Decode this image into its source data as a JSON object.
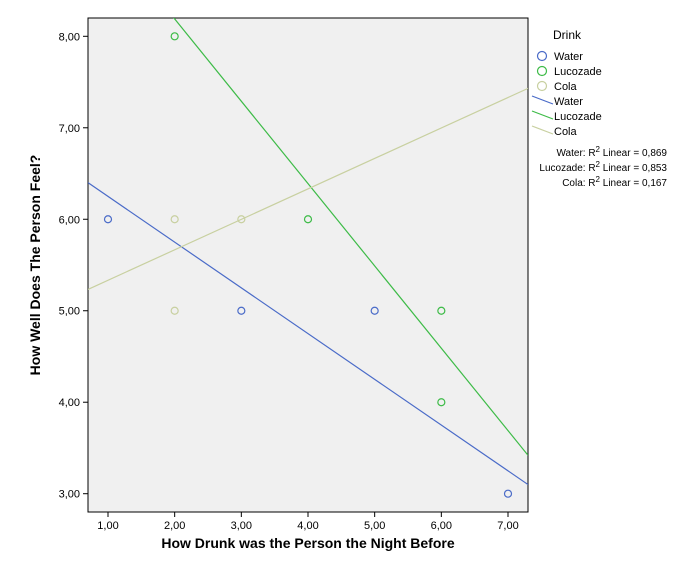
{
  "chart_data": {
    "type": "scatter",
    "title": "",
    "xlabel": "How Drunk was the Person the Night Before",
    "ylabel": "How Well Does The Person Feel?",
    "xlim": [
      0.7,
      7.3
    ],
    "ylim": [
      2.8,
      8.2
    ],
    "x_ticks": [
      1,
      2,
      3,
      4,
      5,
      6,
      7
    ],
    "x_tick_labels": [
      "1,00",
      "2,00",
      "3,00",
      "4,00",
      "5,00",
      "6,00",
      "7,00"
    ],
    "y_ticks": [
      3,
      4,
      5,
      6,
      7,
      8
    ],
    "y_tick_labels": [
      "3,00",
      "4,00",
      "5,00",
      "6,00",
      "7,00",
      "8,00"
    ],
    "grid": false,
    "plot_background": "#f0f0f0",
    "legend_position": "right",
    "legend_title": "Drink",
    "series": [
      {
        "name": "Water",
        "color": "#4a6bc8",
        "points": [
          [
            1,
            6
          ],
          [
            3,
            5
          ],
          [
            5,
            5
          ],
          [
            7,
            3
          ]
        ],
        "fit_line": {
          "label": "Water",
          "slope": -0.5,
          "intercept": 6.75
        },
        "r2_label": "Water: R",
        "r2_value": "Linear = 0,869"
      },
      {
        "name": "Lucozade",
        "color": "#3dbb47",
        "points": [
          [
            2,
            8
          ],
          [
            4,
            6
          ],
          [
            6,
            5
          ],
          [
            6,
            4
          ]
        ],
        "fit_line": {
          "label": "Lucozade",
          "slope": -0.9,
          "intercept": 9.99
        },
        "r2_label": "Lucozade: R",
        "r2_value": "Linear = 0,853"
      },
      {
        "name": "Cola",
        "color": "#c8d0a0",
        "points": [
          [
            2,
            6
          ],
          [
            2,
            5
          ],
          [
            3,
            6
          ]
        ],
        "fit_line": {
          "label": "Cola",
          "slope": 0.333,
          "intercept": 5.0
        },
        "r2_label": "Cola: R",
        "r2_value": "Linear = 0,167"
      }
    ]
  }
}
